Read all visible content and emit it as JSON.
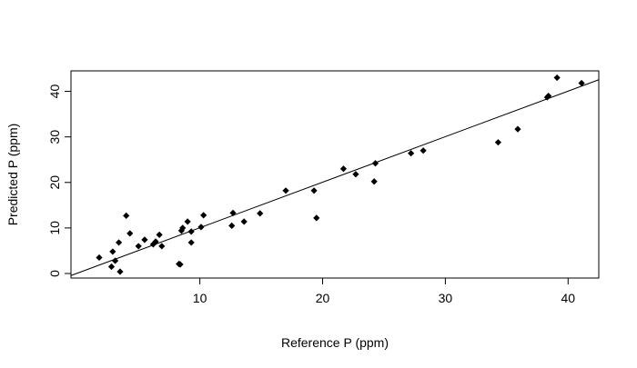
{
  "chart_data": {
    "type": "scatter",
    "xlabel": "Reference P (ppm)",
    "ylabel": "Predicted P (ppm)",
    "xlim": [
      -0.5,
      42.5
    ],
    "ylim": [
      -1.0,
      44.5
    ],
    "x_ticks": [
      10,
      20,
      30,
      40
    ],
    "y_ticks": [
      0,
      10,
      20,
      30,
      40
    ],
    "x_tick_labels": [
      "10",
      "20",
      "30",
      "40"
    ],
    "y_tick_labels": [
      "0",
      "10",
      "20",
      "30",
      "40"
    ],
    "grid": false,
    "legend": "none",
    "marker_color": "#000000",
    "fit_line": {
      "intercept": 0.05,
      "slope": 1.0
    },
    "points": [
      {
        "x": 1.8,
        "y": 3.5
      },
      {
        "x": 2.8,
        "y": 1.5
      },
      {
        "x": 2.9,
        "y": 4.8
      },
      {
        "x": 3.1,
        "y": 2.8
      },
      {
        "x": 3.4,
        "y": 6.8
      },
      {
        "x": 3.5,
        "y": 0.4
      },
      {
        "x": 4.0,
        "y": 12.7
      },
      {
        "x": 4.3,
        "y": 8.8
      },
      {
        "x": 5.0,
        "y": 6.0
      },
      {
        "x": 5.5,
        "y": 7.4
      },
      {
        "x": 6.2,
        "y": 6.4
      },
      {
        "x": 6.4,
        "y": 7.0
      },
      {
        "x": 6.7,
        "y": 8.5
      },
      {
        "x": 6.9,
        "y": 6.0
      },
      {
        "x": 8.3,
        "y": 2.1
      },
      {
        "x": 8.4,
        "y": 2.0
      },
      {
        "x": 8.5,
        "y": 9.4
      },
      {
        "x": 8.6,
        "y": 10.0
      },
      {
        "x": 9.0,
        "y": 11.4
      },
      {
        "x": 9.3,
        "y": 9.2
      },
      {
        "x": 9.3,
        "y": 6.8
      },
      {
        "x": 10.1,
        "y": 10.2
      },
      {
        "x": 10.3,
        "y": 12.8
      },
      {
        "x": 12.6,
        "y": 10.5
      },
      {
        "x": 12.7,
        "y": 13.3
      },
      {
        "x": 13.6,
        "y": 11.4
      },
      {
        "x": 14.9,
        "y": 13.2
      },
      {
        "x": 17.0,
        "y": 18.2
      },
      {
        "x": 19.3,
        "y": 18.2
      },
      {
        "x": 19.5,
        "y": 12.2
      },
      {
        "x": 21.7,
        "y": 23.0
      },
      {
        "x": 22.7,
        "y": 21.8
      },
      {
        "x": 24.2,
        "y": 20.2
      },
      {
        "x": 24.3,
        "y": 24.2
      },
      {
        "x": 27.2,
        "y": 26.4
      },
      {
        "x": 28.2,
        "y": 27.0
      },
      {
        "x": 34.3,
        "y": 28.8
      },
      {
        "x": 35.9,
        "y": 31.7
      },
      {
        "x": 38.3,
        "y": 38.7
      },
      {
        "x": 38.4,
        "y": 39.0
      },
      {
        "x": 39.1,
        "y": 43.0
      },
      {
        "x": 41.1,
        "y": 41.8
      }
    ]
  }
}
